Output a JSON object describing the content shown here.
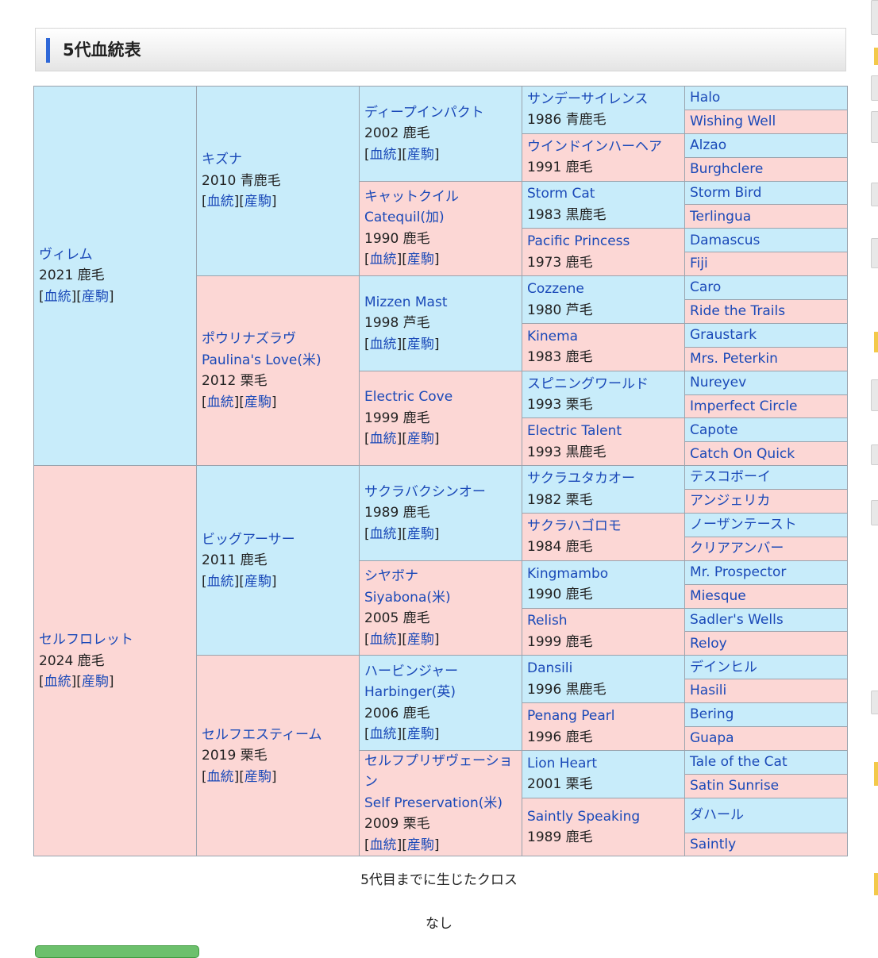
{
  "title": "5代血統表",
  "pedigree": {
    "g1": [
      {
        "name": "ヴィレム",
        "info": "2021 鹿毛",
        "sex": "m"
      },
      {
        "name": "セルフロレット",
        "info": "2024 鹿毛",
        "sex": "f"
      }
    ],
    "g2": [
      {
        "name": "キズナ",
        "info": "2010 青鹿毛",
        "sex": "m"
      },
      {
        "name": "ポウリナズラヴ",
        "sub": "Paulina's Love(米)",
        "info": "2012 栗毛",
        "sex": "f"
      },
      {
        "name": "ビッグアーサー",
        "info": "2011 鹿毛",
        "sex": "m"
      },
      {
        "name": "セルフエスティーム",
        "info": "2019 栗毛",
        "sex": "f"
      }
    ],
    "g3": [
      {
        "name": "ディープインパクト",
        "info": "2002 鹿毛",
        "sex": "m"
      },
      {
        "name": "キャットクイル",
        "sub": "Catequil(加)",
        "info": "1990 鹿毛",
        "sex": "f"
      },
      {
        "name": "Mizzen Mast",
        "info": "1998 芦毛",
        "sex": "m"
      },
      {
        "name": "Electric Cove",
        "info": "1999 鹿毛",
        "sex": "f"
      },
      {
        "name": "サクラバクシンオー",
        "info": "1989 鹿毛",
        "sex": "m"
      },
      {
        "name": "シヤボナ",
        "sub": "Siyabona(米)",
        "info": "2005 鹿毛",
        "sex": "f"
      },
      {
        "name": "ハービンジャー",
        "sub": "Harbinger(英)",
        "info": "2006 鹿毛",
        "sex": "m"
      },
      {
        "name": "セルフプリザヴェーション",
        "sub": "Self Preservation(米)",
        "info": "2009 栗毛",
        "sex": "f"
      }
    ],
    "g4": [
      {
        "name": "サンデーサイレンス",
        "info": "1986 青鹿毛",
        "sex": "m"
      },
      {
        "name": "ウインドインハーヘア",
        "info": "1991 鹿毛",
        "sex": "f"
      },
      {
        "name": "Storm Cat",
        "info": "1983 黒鹿毛",
        "sex": "m"
      },
      {
        "name": "Pacific Princess",
        "info": "1973 鹿毛",
        "sex": "f"
      },
      {
        "name": "Cozzene",
        "info": "1980 芦毛",
        "sex": "m"
      },
      {
        "name": "Kinema",
        "info": "1983 鹿毛",
        "sex": "f"
      },
      {
        "name": "スピニングワールド",
        "info": "1993 栗毛",
        "sex": "m"
      },
      {
        "name": "Electric Talent",
        "info": "1993 黒鹿毛",
        "sex": "f"
      },
      {
        "name": "サクラユタカオー",
        "info": "1982 栗毛",
        "sex": "m"
      },
      {
        "name": "サクラハゴロモ",
        "info": "1984 鹿毛",
        "sex": "f"
      },
      {
        "name": "Kingmambo",
        "info": "1990 鹿毛",
        "sex": "m"
      },
      {
        "name": "Relish",
        "info": "1999 鹿毛",
        "sex": "f"
      },
      {
        "name": "Dansili",
        "info": "1996 黒鹿毛",
        "sex": "m"
      },
      {
        "name": "Penang Pearl",
        "info": "1996 鹿毛",
        "sex": "f"
      },
      {
        "name": "Lion Heart",
        "info": "2001 栗毛",
        "sex": "m"
      },
      {
        "name": "Saintly Speaking",
        "info": "1989 鹿毛",
        "sex": "f"
      }
    ],
    "g5": [
      {
        "name": "Halo",
        "sex": "m"
      },
      {
        "name": "Wishing Well",
        "sex": "f"
      },
      {
        "name": "Alzao",
        "sex": "m"
      },
      {
        "name": "Burghclere",
        "sex": "f"
      },
      {
        "name": "Storm Bird",
        "sex": "m"
      },
      {
        "name": "Terlingua",
        "sex": "f"
      },
      {
        "name": "Damascus",
        "sex": "m"
      },
      {
        "name": "Fiji",
        "sex": "f"
      },
      {
        "name": "Caro",
        "sex": "m"
      },
      {
        "name": "Ride the Trails",
        "sex": "f"
      },
      {
        "name": "Graustark",
        "sex": "m"
      },
      {
        "name": "Mrs. Peterkin",
        "sex": "f"
      },
      {
        "name": "Nureyev",
        "sex": "m"
      },
      {
        "name": "Imperfect Circle",
        "sex": "f"
      },
      {
        "name": "Capote",
        "sex": "m"
      },
      {
        "name": "Catch On Quick",
        "sex": "f"
      },
      {
        "name": "テスコボーイ",
        "sex": "m"
      },
      {
        "name": "アンジェリカ",
        "sex": "f"
      },
      {
        "name": "ノーザンテースト",
        "sex": "m"
      },
      {
        "name": "クリアアンバー",
        "sex": "f"
      },
      {
        "name": "Mr. Prospector",
        "sex": "m"
      },
      {
        "name": "Miesque",
        "sex": "f"
      },
      {
        "name": "Sadler's Wells",
        "sex": "m"
      },
      {
        "name": "Reloy",
        "sex": "f"
      },
      {
        "name": "デインヒル",
        "sex": "m"
      },
      {
        "name": "Hasili",
        "sex": "f"
      },
      {
        "name": "Bering",
        "sex": "m"
      },
      {
        "name": "Guapa",
        "sex": "f"
      },
      {
        "name": "Tale of the Cat",
        "sex": "m"
      },
      {
        "name": "Satin Sunrise",
        "sex": "f"
      },
      {
        "name": "ダハール",
        "sex": "m"
      },
      {
        "name": "Saintly",
        "sex": "f"
      }
    ]
  },
  "links": {
    "open": "[",
    "pedigree": "血統",
    "mid": "][",
    "offspring": "産駒",
    "close": "]"
  },
  "cross": {
    "title": "5代目までに生じたクロス",
    "value": "なし"
  }
}
